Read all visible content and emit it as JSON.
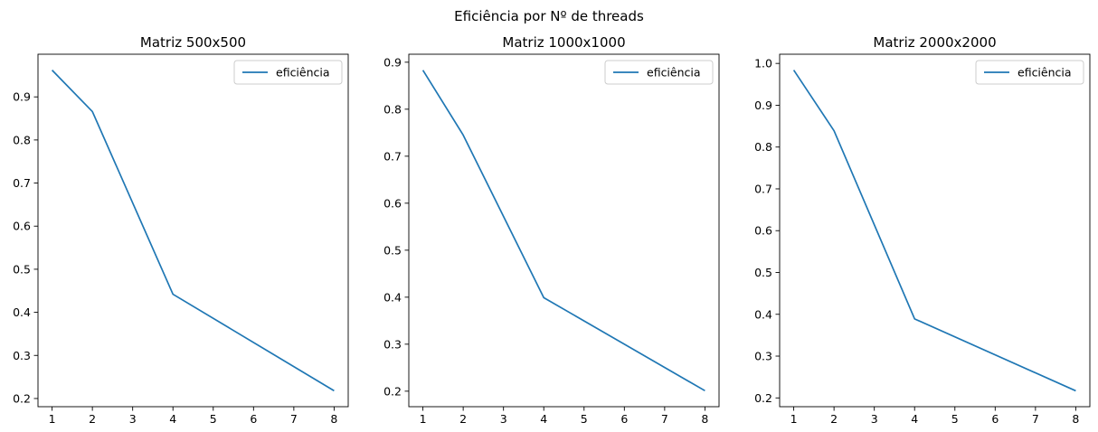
{
  "figure": {
    "title": "Eficiência por Nº de threads"
  },
  "chart_data": [
    {
      "type": "line",
      "title": "Matriz 500x500",
      "xlabel": "",
      "ylabel": "",
      "x": [
        1,
        2,
        4,
        8
      ],
      "series": [
        {
          "name": "eficiência",
          "values": [
            0.962,
            0.866,
            0.442,
            0.218
          ],
          "color": "#1f77b4"
        }
      ],
      "xticks": [
        1,
        2,
        3,
        4,
        5,
        6,
        7,
        8
      ],
      "yticks": [
        0.2,
        0.3,
        0.4,
        0.5,
        0.6,
        0.7,
        0.8,
        0.9
      ],
      "xlim": [
        0.65,
        8.35
      ],
      "ylim": [
        0.181,
        0.999
      ],
      "grid": false,
      "legend": "top-right"
    },
    {
      "type": "line",
      "title": "Matriz 1000x1000",
      "xlabel": "",
      "ylabel": "",
      "x": [
        1,
        2,
        4,
        8
      ],
      "series": [
        {
          "name": "eficiência",
          "values": [
            0.883,
            0.745,
            0.399,
            0.201
          ],
          "color": "#1f77b4"
        }
      ],
      "xticks": [
        1,
        2,
        3,
        4,
        5,
        6,
        7,
        8
      ],
      "yticks": [
        0.2,
        0.3,
        0.4,
        0.5,
        0.6,
        0.7,
        0.8,
        0.9
      ],
      "xlim": [
        0.65,
        8.35
      ],
      "ylim": [
        0.167,
        0.917
      ],
      "grid": false,
      "legend": "top-right"
    },
    {
      "type": "line",
      "title": "Matriz 2000x2000",
      "xlabel": "",
      "ylabel": "",
      "x": [
        1,
        2,
        4,
        8
      ],
      "series": [
        {
          "name": "eficiência",
          "values": [
            0.984,
            0.839,
            0.389,
            0.217
          ],
          "color": "#1f77b4"
        }
      ],
      "xticks": [
        1,
        2,
        3,
        4,
        5,
        6,
        7,
        8
      ],
      "yticks": [
        0.2,
        0.3,
        0.4,
        0.5,
        0.6,
        0.7,
        0.8,
        0.9,
        1.0
      ],
      "xlim": [
        0.65,
        8.35
      ],
      "ylim": [
        0.179,
        1.022
      ],
      "grid": false,
      "legend": "top-right"
    }
  ]
}
